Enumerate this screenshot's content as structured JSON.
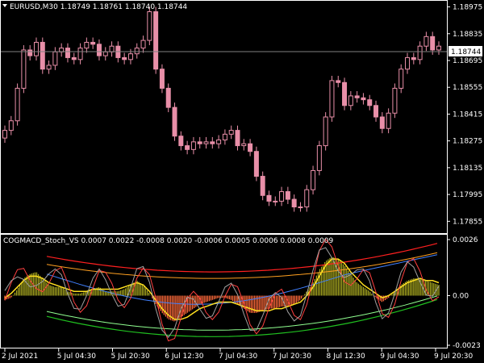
{
  "header": {
    "symbol_info": "EURUSD,M30 1.18749 1.18761 1.18740 1.18744"
  },
  "price_axis": {
    "labels": [
      "1.18975",
      "1.18835",
      "1.18695",
      "1.18555",
      "1.18415",
      "1.18275",
      "1.18135",
      "1.17995",
      "1.17855"
    ],
    "current_price": "1.18744"
  },
  "indicator": {
    "label": "COGMACD_Stoch_VS 0.0007 0.0022 -0.0008 0.0020 -0.0006 0.0005 0.0006 0.0008 0.0009",
    "axis_labels": [
      "0.0026",
      "0.00",
      "-0.0023"
    ]
  },
  "time_axis": {
    "labels": [
      "2 Jul 2021",
      "5 Jul 04:30",
      "5 Jul 20:30",
      "6 Jul 12:30",
      "7 Jul 04:30",
      "7 Jul 20:30",
      "8 Jul 12:30",
      "9 Jul 04:30",
      "9 Jul 20:30"
    ]
  },
  "colors": {
    "background": "#000000",
    "candle": "#e88fa8",
    "grid": "#ffffff",
    "price_line": "#808080",
    "hist_pos": "#a8a820",
    "hist_neg": "#ff6a3a",
    "upper_band": "#ff2020",
    "upper_band2": "#ffa020",
    "lower_band": "#20c020",
    "lower_band2": "#90ff90",
    "signal": "#ffe020",
    "slow": "#4080ff",
    "stoch": "#ff4040"
  },
  "chart_data": [
    {
      "type": "candlestick",
      "title": "EURUSD,M30",
      "ylim": [
        1.1781,
        1.1899
      ],
      "close": [
        1.1833,
        1.1838,
        1.1855,
        1.1875,
        1.1872,
        1.1879,
        1.1865,
        1.1867,
        1.1874,
        1.1876,
        1.1871,
        1.187,
        1.1876,
        1.1879,
        1.1878,
        1.1872,
        1.1874,
        1.1877,
        1.1871,
        1.187,
        1.1873,
        1.1876,
        1.188,
        1.1895,
        1.1865,
        1.1855,
        1.1845,
        1.183,
        1.1825,
        1.1823,
        1.1827,
        1.1826,
        1.1827,
        1.1826,
        1.1828,
        1.1831,
        1.1833,
        1.1825,
        1.1826,
        1.1822,
        1.1809,
        1.1799,
        1.1796,
        1.1796,
        1.1801,
        1.1797,
        1.1793,
        1.1793,
        1.1802,
        1.1812,
        1.1825,
        1.184,
        1.1859,
        1.1858,
        1.1846,
        1.1851,
        1.185,
        1.1849,
        1.1846,
        1.184,
        1.1834,
        1.1842,
        1.1855,
        1.1865,
        1.1871,
        1.187,
        1.1877,
        1.1882,
        1.1875,
        1.1877
      ],
      "current": 1.18744
    },
    {
      "type": "line",
      "title": "COGMACD_Stoch_VS",
      "ylim": [
        -0.0023,
        0.0026
      ],
      "histogram": [
        -0.0002,
        -0.0001,
        0.0003,
        0.0008,
        0.001,
        0.0011,
        0.0008,
        0.0005,
        0.0004,
        0.0004,
        0.0002,
        0.0001,
        0.0001,
        0.0002,
        0.0003,
        0.0004,
        0.0002,
        0.0002,
        0.0002,
        0.0003,
        0.0005,
        0.0007,
        0.0005,
        0.0001,
        -0.0004,
        -0.0008,
        -0.0011,
        -0.0012,
        -0.001,
        -0.0008,
        -0.0006,
        -0.0004,
        -0.0003,
        -0.0002,
        -0.0001,
        -0.0001,
        -0.0002,
        -0.0004,
        -0.0006,
        -0.0008,
        -0.0008,
        -0.0007,
        -0.0006,
        -0.0006,
        -0.0005,
        -0.0005,
        -0.0004,
        -0.0002,
        0.0002,
        0.0006,
        0.0012,
        0.0016,
        0.0018,
        0.0017,
        0.0014,
        0.001,
        0.0006,
        0.0004,
        0.0002,
        -0.0001,
        -0.0003,
        -0.0001,
        0.0002,
        0.0005,
        0.0007,
        0.0008,
        0.0008,
        0.0007,
        0.0006,
        0.0005
      ],
      "signal": [
        -0.0001,
        0.0001,
        0.0004,
        0.0007,
        0.0009,
        0.0009,
        0.0008,
        0.0006,
        0.0005,
        0.0004,
        0.0003,
        0.0002,
        0.0002,
        0.0002,
        0.0003,
        0.0003,
        0.0003,
        0.0003,
        0.0003,
        0.0004,
        0.0005,
        0.0006,
        0.0005,
        0.0002,
        -0.0002,
        -0.0006,
        -0.0009,
        -0.0011,
        -0.0011,
        -0.001,
        -0.0008,
        -0.0006,
        -0.0005,
        -0.0004,
        -0.0003,
        -0.0003,
        -0.0003,
        -0.0004,
        -0.0005,
        -0.0006,
        -0.0007,
        -0.0007,
        -0.0007,
        -0.0006,
        -0.0006,
        -0.0005,
        -0.0004,
        -0.0003,
        0.0,
        0.0004,
        0.0009,
        0.0014,
        0.0017,
        0.0017,
        0.0015,
        0.0011,
        0.0008,
        0.0005,
        0.0003,
        0.0001,
        -0.0001,
        0.0,
        0.0002,
        0.0004,
        0.0006,
        0.0007,
        0.0008,
        0.0007,
        0.0007,
        0.0006
      ]
    }
  ]
}
